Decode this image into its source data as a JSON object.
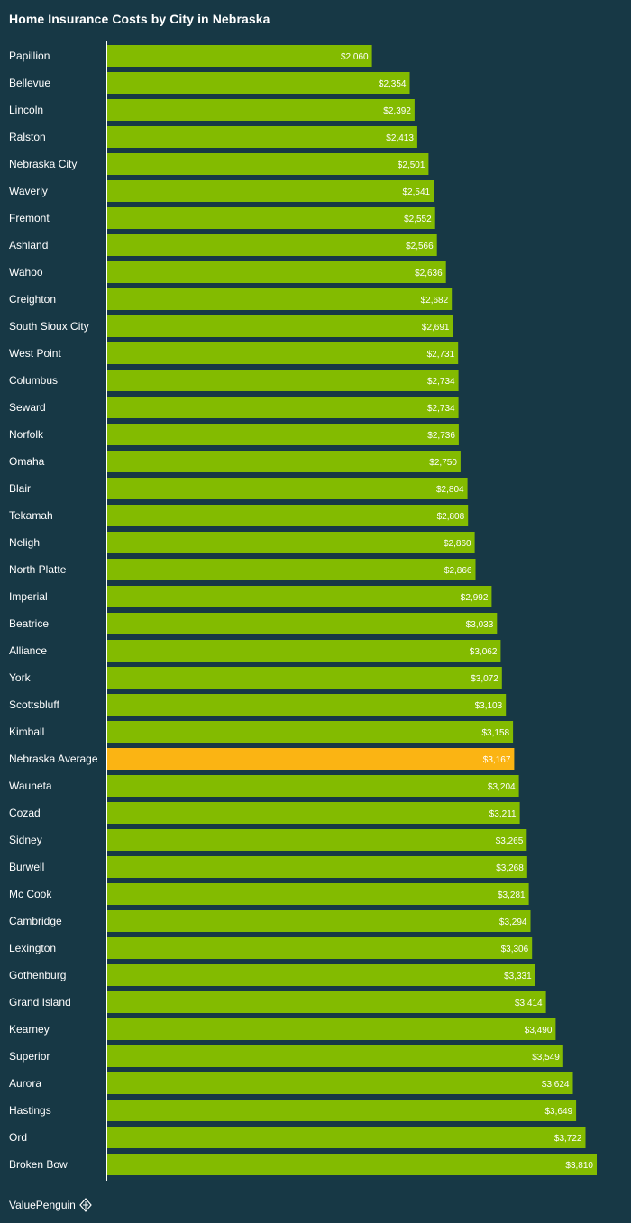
{
  "chart_data": {
    "type": "bar",
    "orientation": "horizontal",
    "title": "Home Insurance Costs by City in Nebraska",
    "categories": [
      "Papillion",
      "Bellevue",
      "Lincoln",
      "Ralston",
      "Nebraska City",
      "Waverly",
      "Fremont",
      "Ashland",
      "Wahoo",
      "Creighton",
      "South Sioux City",
      "West Point",
      "Columbus",
      "Seward",
      "Norfolk",
      "Omaha",
      "Blair",
      "Tekamah",
      "Neligh",
      "North Platte",
      "Imperial",
      "Beatrice",
      "Alliance",
      "York",
      "Scottsbluff",
      "Kimball",
      "Nebraska Average",
      "Wauneta",
      "Cozad",
      "Sidney",
      "Burwell",
      "Mc Cook",
      "Cambridge",
      "Lexington",
      "Gothenburg",
      "Grand Island",
      "Kearney",
      "Superior",
      "Aurora",
      "Hastings",
      "Ord",
      "Broken Bow"
    ],
    "values": [
      2060,
      2354,
      2392,
      2413,
      2501,
      2541,
      2552,
      2566,
      2636,
      2682,
      2691,
      2731,
      2734,
      2734,
      2736,
      2750,
      2804,
      2808,
      2860,
      2866,
      2992,
      3033,
      3062,
      3072,
      3103,
      3158,
      3167,
      3204,
      3211,
      3265,
      3268,
      3281,
      3294,
      3306,
      3331,
      3414,
      3490,
      3549,
      3624,
      3649,
      3722,
      3810
    ],
    "value_labels": [
      "$2,060",
      "$2,354",
      "$2,392",
      "$2,413",
      "$2,501",
      "$2,541",
      "$2,552",
      "$2,566",
      "$2,636",
      "$2,682",
      "$2,691",
      "$2,731",
      "$2,734",
      "$2,734",
      "$2,736",
      "$2,750",
      "$2,804",
      "$2,808",
      "$2,860",
      "$2,866",
      "$2,992",
      "$3,033",
      "$3,062",
      "$3,072",
      "$3,103",
      "$3,158",
      "$3,167",
      "$3,204",
      "$3,211",
      "$3,265",
      "$3,268",
      "$3,281",
      "$3,294",
      "$3,306",
      "$3,331",
      "$3,414",
      "$3,490",
      "$3,549",
      "$3,624",
      "$3,649",
      "$3,722",
      "$3,810"
    ],
    "highlight_category": "Nebraska Average",
    "colors": {
      "bar": "#83bb00",
      "highlight": "#fbb413",
      "background": "#173845",
      "axis": "#ffffff",
      "text": "#ffffff"
    },
    "xlim": [
      0,
      3810
    ],
    "grid": false,
    "legend": "none"
  },
  "branding": {
    "name": "ValuePenguin",
    "icon": "penguin-logo-icon"
  }
}
